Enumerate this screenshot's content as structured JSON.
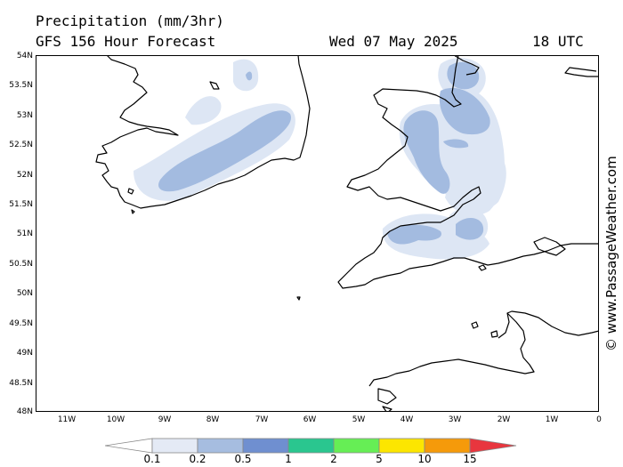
{
  "header": {
    "title_line1": "Precipitation (mm/3hr)",
    "title_line2": "GFS 156 Hour Forecast",
    "date": "Wed 07 May 2025",
    "time": "18 UTC"
  },
  "credit": "© www.PassageWeather.com",
  "axes": {
    "lat_labels": [
      "54N",
      "53.5N",
      "53N",
      "52.5N",
      "52N",
      "51.5N",
      "51N",
      "50.5N",
      "50N",
      "49.5N",
      "49N",
      "48.5N",
      "48N"
    ],
    "lon_labels": [
      "11W",
      "10W",
      "9W",
      "8W",
      "7W",
      "6W",
      "5W",
      "4W",
      "3W",
      "2W",
      "1W",
      "0"
    ]
  },
  "legend": {
    "ticks": [
      "0.1",
      "0.2",
      "0.5",
      "1",
      "2",
      "5",
      "10",
      "15"
    ],
    "colors": [
      "#ffffff",
      "#e4eaf5",
      "#a6bde0",
      "#6f8fd0",
      "#2ac68f",
      "#66ee55",
      "#fce600",
      "#f59a0a",
      "#e8363e"
    ]
  },
  "colors": {
    "light_precip": "#dde6f4",
    "medium_precip": "#a3bbe0",
    "coastline": "#000000"
  }
}
